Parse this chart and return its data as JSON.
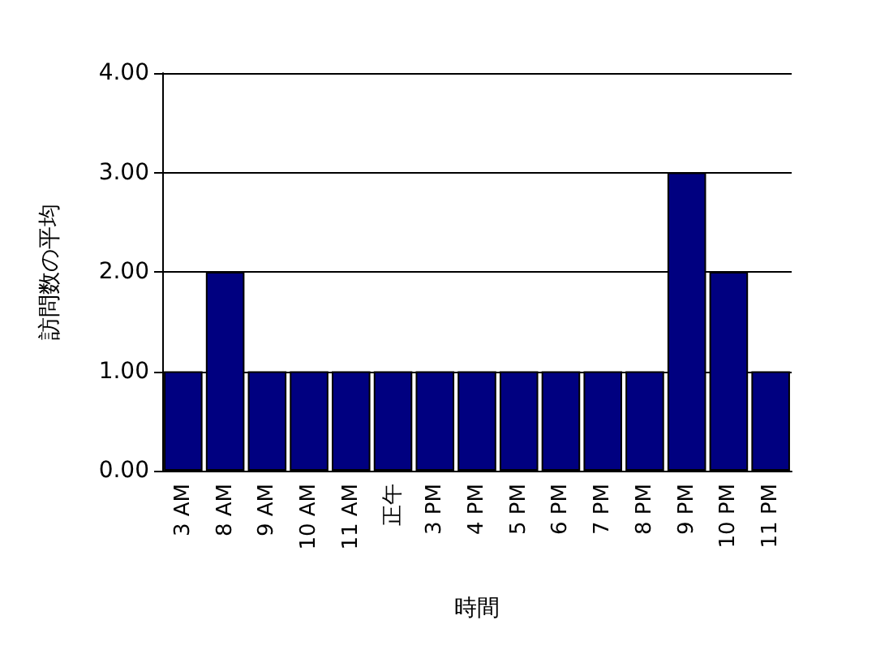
{
  "chart_data": {
    "type": "bar",
    "xlabel": "時間",
    "ylabel": "訪問数の平均",
    "categories": [
      "3 AM",
      "8 AM",
      "9 AM",
      "10 AM",
      "11 AM",
      "正午",
      "3 PM",
      "4 PM",
      "5 PM",
      "6 PM",
      "7 PM",
      "8 PM",
      "9 PM",
      "10 PM",
      "11 PM"
    ],
    "values": [
      1,
      2,
      1,
      1,
      1,
      1,
      1,
      1,
      1,
      1,
      1,
      1,
      3,
      2,
      1
    ],
    "color": "#000080",
    "ylim": [
      0,
      4
    ],
    "yticks": [
      {
        "value": 0,
        "label": "0.00"
      },
      {
        "value": 1,
        "label": "1.00"
      },
      {
        "value": 2,
        "label": "2.00"
      },
      {
        "value": 3,
        "label": "3.00"
      },
      {
        "value": 4,
        "label": "4.00"
      }
    ],
    "grid": "y"
  }
}
